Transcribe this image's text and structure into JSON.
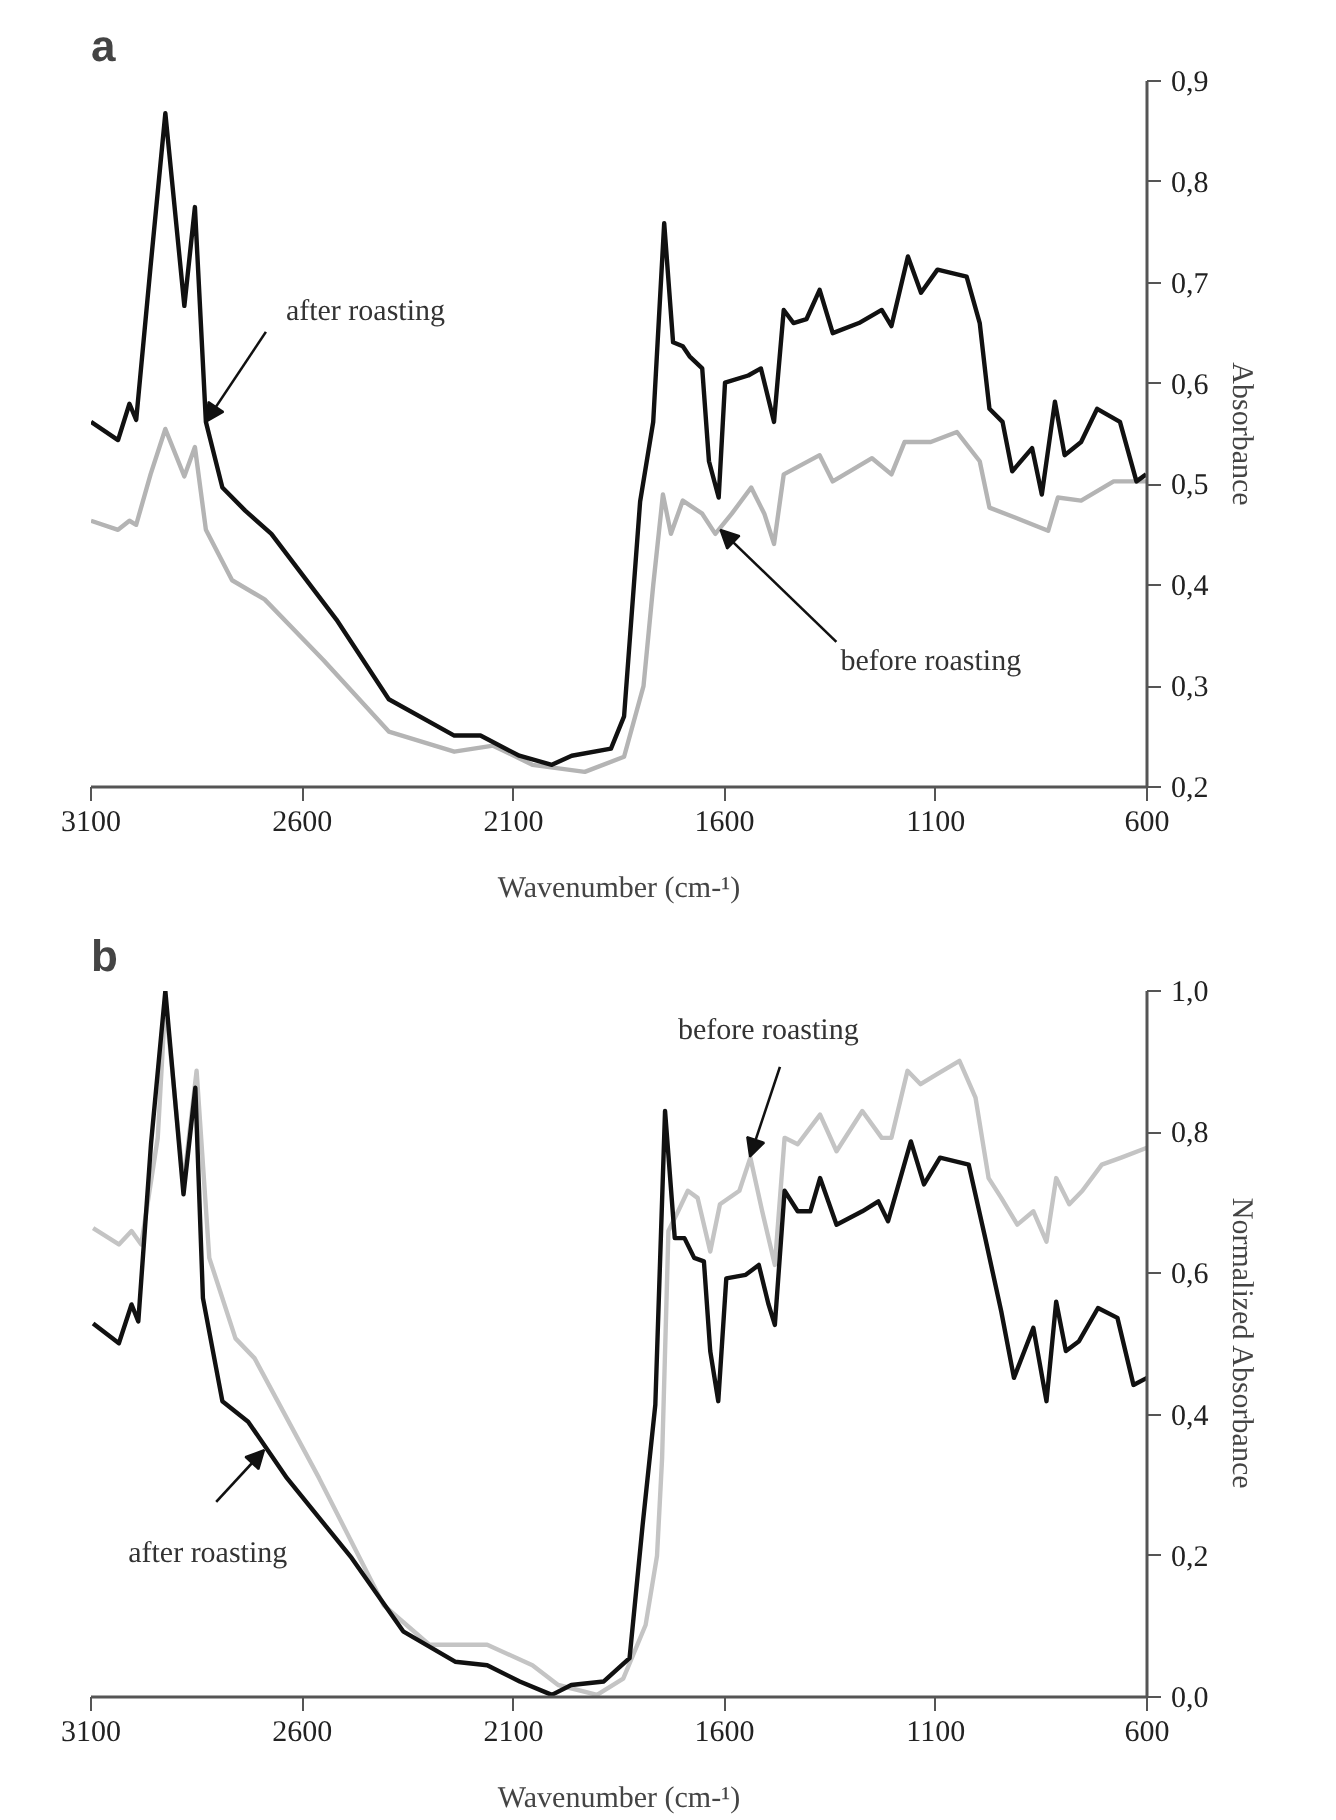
{
  "chart_data": [
    {
      "type": "line",
      "title": "a",
      "xlabel": "Wavenumber (cm-¹)",
      "ylabel": "Absorbance",
      "xlim": [
        3100,
        600
      ],
      "ylim": [
        0.2,
        0.9
      ],
      "xticks": [
        3100,
        2600,
        2100,
        1600,
        1100,
        600
      ],
      "yticks": [
        {
          "value": 0.2,
          "label": "0,2"
        },
        {
          "value": 0.3,
          "label": "0,3"
        },
        {
          "value": 0.4,
          "label": "0,4"
        },
        {
          "value": 0.5,
          "label": "0,5"
        },
        {
          "value": 0.6,
          "label": "0,6"
        },
        {
          "value": 0.7,
          "label": "0,7"
        },
        {
          "value": 0.8,
          "label": "0,8"
        },
        {
          "value": 0.9,
          "label": "0,9"
        }
      ],
      "grid": false,
      "marker": "none",
      "line_style": "solid",
      "series": [
        {
          "color": "#b4b4b4",
          "x": [
            3100,
            3036,
            3009,
            2993,
            2959,
            2924,
            2879,
            2854,
            2828,
            2766,
            2689,
            2550,
            2395,
            2240,
            2148,
            2055,
            1931,
            1838,
            1792,
            1769,
            1746,
            1727,
            1699,
            1653,
            1622,
            1583,
            1537,
            1506,
            1483,
            1460,
            1375,
            1344,
            1251,
            1205,
            1174,
            1112,
            1050,
            996,
            973,
            911,
            834,
            811,
            756,
            679,
            602
          ],
          "values": [
            0.464,
            0.455,
            0.464,
            0.46,
            0.51,
            0.555,
            0.508,
            0.537,
            0.455,
            0.405,
            0.386,
            0.326,
            0.255,
            0.235,
            0.241,
            0.222,
            0.215,
            0.23,
            0.3,
            0.4,
            0.49,
            0.451,
            0.484,
            0.471,
            0.451,
            0.471,
            0.497,
            0.471,
            0.441,
            0.51,
            0.529,
            0.503,
            0.526,
            0.51,
            0.542,
            0.542,
            0.552,
            0.523,
            0.477,
            0.467,
            0.454,
            0.487,
            0.484,
            0.503,
            0.503
          ]
        },
        {
          "color": "#111111",
          "x": [
            3100,
            3036,
            3009,
            2993,
            2959,
            2924,
            2879,
            2854,
            2828,
            2789,
            2735,
            2673,
            2519,
            2395,
            2240,
            2178,
            2086,
            2009,
            1962,
            1869,
            1838,
            1800,
            1769,
            1743,
            1722,
            1699,
            1683,
            1653,
            1637,
            1614,
            1599,
            1544,
            1514,
            1483,
            1460,
            1437,
            1406,
            1375,
            1344,
            1282,
            1228,
            1205,
            1166,
            1135,
            1096,
            1027,
            996,
            973,
            942,
            919,
            872,
            849,
            818,
            795,
            756,
            718,
            664,
            625,
            602
          ],
          "values": [
            0.562,
            0.544,
            0.58,
            0.564,
            0.716,
            0.868,
            0.677,
            0.775,
            0.562,
            0.497,
            0.474,
            0.451,
            0.366,
            0.287,
            0.251,
            0.251,
            0.231,
            0.222,
            0.231,
            0.238,
            0.27,
            0.483,
            0.562,
            0.759,
            0.641,
            0.637,
            0.627,
            0.615,
            0.523,
            0.487,
            0.601,
            0.608,
            0.615,
            0.562,
            0.673,
            0.66,
            0.664,
            0.693,
            0.65,
            0.66,
            0.673,
            0.657,
            0.726,
            0.69,
            0.713,
            0.706,
            0.66,
            0.575,
            0.562,
            0.513,
            0.536,
            0.49,
            0.582,
            0.529,
            0.542,
            0.575,
            0.562,
            0.503,
            0.51
          ]
        }
      ],
      "annotations": [
        {
          "text": "after roasting",
          "x": 2828,
          "y": 0.562
        },
        {
          "text": "before roasting",
          "x": 1610,
          "y": 0.455
        }
      ]
    },
    {
      "type": "line",
      "title": "b",
      "xlabel": "Wavenumber (cm-¹)",
      "ylabel": "Normalized Absorbance",
      "xlim": [
        3100,
        600
      ],
      "ylim": [
        0.0,
        1.0
      ],
      "xticks": [
        3100,
        2600,
        2100,
        1600,
        1100,
        600
      ],
      "yticks": [
        {
          "value": 0.0,
          "label": "0,0"
        },
        {
          "value": 0.2,
          "label": "0,2"
        },
        {
          "value": 0.4,
          "label": "0,4"
        },
        {
          "value": 0.6,
          "label": "0,6"
        },
        {
          "value": 0.8,
          "label": "0,8"
        },
        {
          "value": 1.0,
          "label": "1,0"
        }
      ],
      "grid": false,
      "marker": "none",
      "line_style": "solid",
      "series": [
        {
          "color": "#c4c4c4",
          "x": [
            3095,
            3034,
            3004,
            2981,
            2942,
            2924,
            2881,
            2850,
            2820,
            2758,
            2713,
            2560,
            2407,
            2299,
            2162,
            2055,
            1994,
            1902,
            1840,
            1787,
            1760,
            1748,
            1733,
            1710,
            1687,
            1664,
            1634,
            1611,
            1565,
            1539,
            1511,
            1481,
            1458,
            1427,
            1374,
            1335,
            1274,
            1228,
            1205,
            1167,
            1136,
            1098,
            1044,
            1006,
            975,
            945,
            907,
            869,
            838,
            815,
            784,
            753,
            707,
            661,
            600
          ],
          "values": [
            0.664,
            0.641,
            0.66,
            0.641,
            0.792,
            0.985,
            0.726,
            0.887,
            0.622,
            0.508,
            0.48,
            0.31,
            0.13,
            0.074,
            0.074,
            0.045,
            0.017,
            0.003,
            0.026,
            0.102,
            0.2,
            0.338,
            0.66,
            0.688,
            0.717,
            0.707,
            0.631,
            0.698,
            0.717,
            0.764,
            0.688,
            0.612,
            0.792,
            0.783,
            0.825,
            0.773,
            0.83,
            0.792,
            0.792,
            0.887,
            0.868,
            0.882,
            0.901,
            0.849,
            0.735,
            0.707,
            0.669,
            0.688,
            0.645,
            0.735,
            0.698,
            0.717,
            0.754,
            0.764,
            0.778
          ]
        },
        {
          "color": "#111111",
          "x": [
            3095,
            3034,
            3004,
            2988,
            2958,
            2924,
            2881,
            2853,
            2835,
            2789,
            2728,
            2636,
            2483,
            2361,
            2238,
            2162,
            2085,
            2009,
            1963,
            1886,
            1825,
            1794,
            1764,
            1741,
            1718,
            1695,
            1672,
            1649,
            1634,
            1615,
            1596,
            1550,
            1519,
            1496,
            1481,
            1458,
            1427,
            1397,
            1374,
            1335,
            1274,
            1236,
            1213,
            1159,
            1128,
            1090,
            1022,
            983,
            945,
            915,
            869,
            838,
            815,
            792,
            761,
            716,
            670,
            632,
            600
          ],
          "values": [
            0.529,
            0.501,
            0.556,
            0.532,
            0.783,
            1.0,
            0.712,
            0.863,
            0.565,
            0.419,
            0.39,
            0.31,
            0.197,
            0.093,
            0.05,
            0.045,
            0.022,
            0.003,
            0.017,
            0.022,
            0.055,
            0.244,
            0.414,
            0.83,
            0.65,
            0.65,
            0.622,
            0.617,
            0.49,
            0.419,
            0.593,
            0.598,
            0.612,
            0.556,
            0.527,
            0.717,
            0.688,
            0.688,
            0.735,
            0.669,
            0.688,
            0.702,
            0.674,
            0.787,
            0.726,
            0.764,
            0.754,
            0.65,
            0.546,
            0.452,
            0.523,
            0.419,
            0.56,
            0.49,
            0.504,
            0.551,
            0.537,
            0.442,
            0.452
          ]
        }
      ],
      "annotations": [
        {
          "text": "before roasting",
          "x": 1540,
          "y": 0.765
        },
        {
          "text": "after roasting",
          "x": 2690,
          "y": 0.35
        }
      ]
    }
  ]
}
